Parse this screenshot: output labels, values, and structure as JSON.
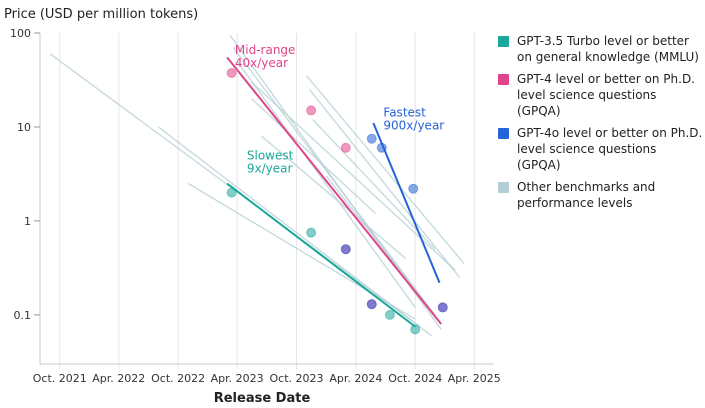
{
  "chart_data": {
    "type": "scatter",
    "title": "",
    "ylabel": "Price (USD per million tokens)",
    "xlabel": "Release Date",
    "y_scale": "log",
    "ylim": [
      0.03,
      100
    ],
    "y_ticks": [
      {
        "value": 100,
        "label": "100"
      },
      {
        "value": 10,
        "label": "10"
      },
      {
        "value": 1,
        "label": "1"
      },
      {
        "value": 0.1,
        "label": "0.1"
      }
    ],
    "x_ticks": [
      "Oct. 2021",
      "Apr. 2022",
      "Oct. 2022",
      "Apr. 2023",
      "Oct. 2023",
      "Apr. 2024",
      "Oct. 2024",
      "Apr. 2025"
    ],
    "xlim": [
      "2021-08-01",
      "2025-06-01"
    ],
    "grid": {
      "x": true,
      "y": false
    },
    "legend_position": "right",
    "colors": {
      "gpt35": "#1aa89a",
      "gpt4": "#e0448a",
      "gpt4o": "#2563d9",
      "other": "#b4cfd3"
    },
    "series": [
      {
        "name": "GPT-3.5 Turbo level or better on general knowledge (MMLU)",
        "key": "gpt35",
        "points": [
          {
            "x": "2023-03-15",
            "y": 2.0
          },
          {
            "x": "2023-11-15",
            "y": 0.75
          },
          {
            "x": "2024-07-15",
            "y": 0.1
          },
          {
            "x": "2024-10-01",
            "y": 0.07
          }
        ],
        "trend": [
          {
            "x": "2023-03-01",
            "y": 2.5
          },
          {
            "x": "2024-10-01",
            "y": 0.075
          }
        ]
      },
      {
        "name": "GPT-4 level or better on Ph.D. level science questions (GPQA)",
        "key": "gpt4",
        "points": [
          {
            "x": "2023-03-15",
            "y": 37.5
          },
          {
            "x": "2023-11-15",
            "y": 15
          },
          {
            "x": "2024-03-01",
            "y": 6
          },
          {
            "x": "2024-03-01",
            "y": 0.5
          },
          {
            "x": "2024-05-20",
            "y": 0.13
          },
          {
            "x": "2024-12-25",
            "y": 0.12
          }
        ],
        "trend": [
          {
            "x": "2023-03-01",
            "y": 55
          },
          {
            "x": "2024-12-20",
            "y": 0.08
          }
        ]
      },
      {
        "name": "GPT-4o level or better on Ph.D. level science questions (GPQA)",
        "key": "gpt4o",
        "points": [
          {
            "x": "2024-05-20",
            "y": 7.5
          },
          {
            "x": "2024-06-20",
            "y": 6
          },
          {
            "x": "2024-09-25",
            "y": 2.2
          },
          {
            "x": "2024-12-25",
            "y": 0.12
          },
          {
            "x": "2024-03-01",
            "y": 0.5
          },
          {
            "x": "2024-05-20",
            "y": 0.13
          }
        ],
        "trend": [
          {
            "x": "2024-05-25",
            "y": 11
          },
          {
            "x": "2024-12-15",
            "y": 0.22
          }
        ]
      },
      {
        "name": "Other benchmarks and performance levels",
        "key": "other",
        "lines": [
          [
            {
              "x": "2021-09-01",
              "y": 60
            },
            {
              "x": "2024-10-15",
              "y": 0.075
            }
          ],
          [
            {
              "x": "2022-08-01",
              "y": 10
            },
            {
              "x": "2024-11-20",
              "y": 0.06
            }
          ],
          [
            {
              "x": "2022-11-01",
              "y": 2.5
            },
            {
              "x": "2024-10-01",
              "y": 0.09
            }
          ],
          [
            {
              "x": "2023-03-10",
              "y": 95
            },
            {
              "x": "2024-12-20",
              "y": 0.07
            }
          ],
          [
            {
              "x": "2023-03-20",
              "y": 70
            },
            {
              "x": "2024-12-01",
              "y": 0.1
            }
          ],
          [
            {
              "x": "2023-04-01",
              "y": 50
            },
            {
              "x": "2024-10-01",
              "y": 0.12
            }
          ],
          [
            {
              "x": "2023-05-15",
              "y": 30
            },
            {
              "x": "2025-02-01",
              "y": 0.3
            }
          ],
          [
            {
              "x": "2023-05-15",
              "y": 20
            },
            {
              "x": "2024-06-01",
              "y": 1.2
            }
          ],
          [
            {
              "x": "2023-06-15",
              "y": 8
            },
            {
              "x": "2024-09-01",
              "y": 0.4
            }
          ],
          [
            {
              "x": "2023-11-01",
              "y": 35
            },
            {
              "x": "2025-03-01",
              "y": 0.35
            }
          ],
          [
            {
              "x": "2023-11-10",
              "y": 25
            },
            {
              "x": "2025-02-15",
              "y": 0.25
            }
          ],
          [
            {
              "x": "2023-11-20",
              "y": 12
            },
            {
              "x": "2024-12-01",
              "y": 0.5
            }
          ],
          [
            {
              "x": "2024-01-01",
              "y": 3
            },
            {
              "x": "2024-12-01",
              "y": 0.1
            }
          ]
        ]
      }
    ],
    "annotations": [
      {
        "text": "Mid-range\n40x/year",
        "key": "gpt4",
        "x": "2023-03-25",
        "y": 60
      },
      {
        "text": "Fastest\n900x/year",
        "key": "gpt4o",
        "x": "2024-06-25",
        "y": 13
      },
      {
        "text": "Slowest\n9x/year",
        "key": "gpt35",
        "x": "2023-05-01",
        "y": 4.5
      }
    ]
  }
}
